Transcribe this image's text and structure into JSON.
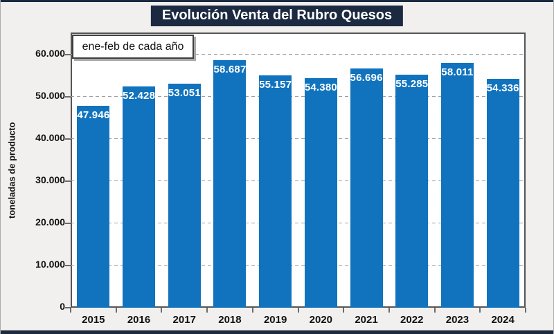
{
  "chart_data": {
    "type": "bar",
    "title": "Evolución Venta del Rubro Quesos",
    "annotation": "ene-feb de cada año",
    "categories": [
      "2015",
      "2016",
      "2017",
      "2018",
      "2019",
      "2020",
      "2021",
      "2022",
      "2023",
      "2024"
    ],
    "values": [
      47946,
      52428,
      53051,
      58687,
      55157,
      54380,
      56696,
      55285,
      58011,
      54336
    ],
    "value_labels": [
      "47.946",
      "52.428",
      "53.051",
      "58.687",
      "55.157",
      "54.380",
      "56.696",
      "55.285",
      "58.011",
      "54.336"
    ],
    "xlabel": "",
    "ylabel": "toneladas de producto",
    "ylim": [
      0,
      65245
    ],
    "yticks": [
      0,
      10000,
      20000,
      30000,
      40000,
      50000,
      60000
    ],
    "ytick_labels": [
      "0",
      "10.000",
      "20.000",
      "30.000",
      "40.000",
      "50.000",
      "60.000"
    ],
    "grid": "horizontal-dashed",
    "legend": "none"
  },
  "colors": {
    "bar": "#1173BE",
    "title_bg": "#1B2A41",
    "title_text": "#FFFFFF",
    "strip": "#1B2A41",
    "background": "#F1F0EF",
    "plot_bg": "#FFFFFF",
    "gridline": "#9D9D9D",
    "bar_label_text": "#FFFFFF"
  }
}
